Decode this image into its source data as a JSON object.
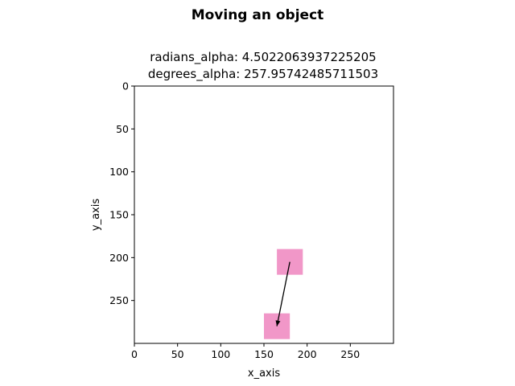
{
  "figure": {
    "suptitle": "Moving an object",
    "title_line1": "radians_alpha: 4.5022063937225205",
    "title_line2": "degrees_alpha: 257.95742485711503"
  },
  "chart_data": {
    "type": "scatter",
    "title": "radians_alpha: 4.5022063937225205\ndegrees_alpha: 257.95742485711503",
    "xlabel": "x_axis",
    "ylabel": "y_axis",
    "xlim": [
      0,
      300
    ],
    "ylim": [
      300,
      0
    ],
    "y_inverted": true,
    "xticks": [
      0,
      50,
      100,
      150,
      200,
      250
    ],
    "yticks": [
      0,
      50,
      100,
      150,
      200,
      250
    ],
    "grid": false,
    "color": "#f197c8",
    "objects": [
      {
        "name": "start",
        "x": 180,
        "y": 205,
        "size": 30
      },
      {
        "name": "end",
        "x": 165,
        "y": 280,
        "size": 30
      }
    ],
    "arrow": {
      "from": [
        180,
        205
      ],
      "to": [
        165,
        280
      ],
      "color": "#000000"
    }
  }
}
